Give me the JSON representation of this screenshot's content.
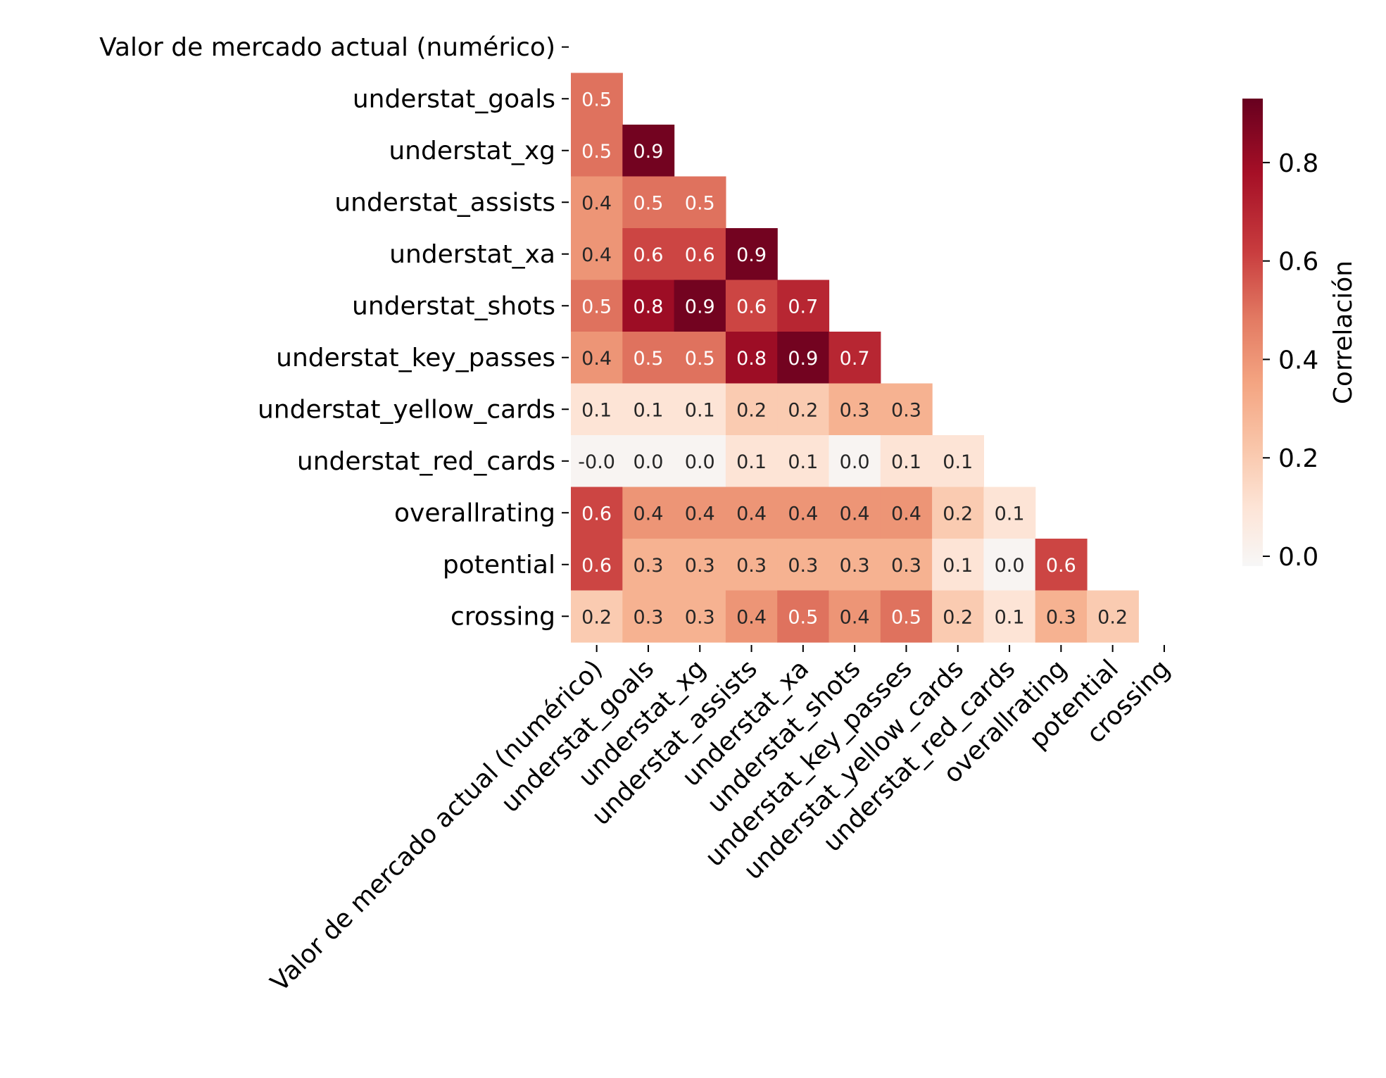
{
  "chart_data": {
    "type": "heatmap",
    "title": "",
    "variables": [
      "Valor de mercado actual (numérico)",
      "understat_goals",
      "understat_xg",
      "understat_assists",
      "understat_xa",
      "understat_shots",
      "understat_key_passes",
      "understat_yellow_cards",
      "understat_red_cards",
      "overallrating",
      "potential",
      "crossing"
    ],
    "lower_triangle": [
      [],
      [
        0.5
      ],
      [
        0.5,
        0.9
      ],
      [
        0.4,
        0.5,
        0.5
      ],
      [
        0.4,
        0.6,
        0.6,
        0.9
      ],
      [
        0.5,
        0.8,
        0.9,
        0.6,
        0.7
      ],
      [
        0.4,
        0.5,
        0.5,
        0.8,
        0.9,
        0.7
      ],
      [
        0.1,
        0.1,
        0.1,
        0.2,
        0.2,
        0.3,
        0.3
      ],
      [
        -0.0,
        0.0,
        0.0,
        0.1,
        0.1,
        0.0,
        0.1,
        0.1
      ],
      [
        0.6,
        0.4,
        0.4,
        0.4,
        0.4,
        0.4,
        0.4,
        0.2,
        0.1
      ],
      [
        0.6,
        0.3,
        0.3,
        0.3,
        0.3,
        0.3,
        0.3,
        0.1,
        0.0,
        0.6
      ],
      [
        0.2,
        0.3,
        0.3,
        0.4,
        0.5,
        0.4,
        0.5,
        0.2,
        0.1,
        0.3,
        0.2
      ]
    ],
    "cell_labels": [
      [],
      [
        "0.5"
      ],
      [
        "0.5",
        "0.9"
      ],
      [
        "0.4",
        "0.5",
        "0.5"
      ],
      [
        "0.4",
        "0.6",
        "0.6",
        "0.9"
      ],
      [
        "0.5",
        "0.8",
        "0.9",
        "0.6",
        "0.7"
      ],
      [
        "0.4",
        "0.5",
        "0.5",
        "0.8",
        "0.9",
        "0.7"
      ],
      [
        "0.1",
        "0.1",
        "0.1",
        "0.2",
        "0.2",
        "0.3",
        "0.3"
      ],
      [
        "-0.0",
        "0.0",
        "0.0",
        "0.1",
        "0.1",
        "0.0",
        "0.1",
        "0.1"
      ],
      [
        "0.6",
        "0.4",
        "0.4",
        "0.4",
        "0.4",
        "0.4",
        "0.4",
        "0.2",
        "0.1"
      ],
      [
        "0.6",
        "0.3",
        "0.3",
        "0.3",
        "0.3",
        "0.3",
        "0.3",
        "0.1",
        "0.0",
        "0.6"
      ],
      [
        "0.2",
        "0.3",
        "0.3",
        "0.4",
        "0.5",
        "0.4",
        "0.5",
        "0.2",
        "0.1",
        "0.3",
        "0.2"
      ]
    ],
    "colorbar": {
      "label": "Correlación",
      "range": [
        -0.02,
        0.93
      ],
      "ticks": [
        0.0,
        0.2,
        0.4,
        0.6,
        0.8
      ],
      "tick_labels": [
        "0.0",
        "0.2",
        "0.4",
        "0.6",
        "0.8"
      ],
      "colormap": "RdBu_r (white at 0 to dark red)"
    },
    "mask": "upper triangle including diagonal",
    "grid": false,
    "legend": "colorbar right"
  }
}
